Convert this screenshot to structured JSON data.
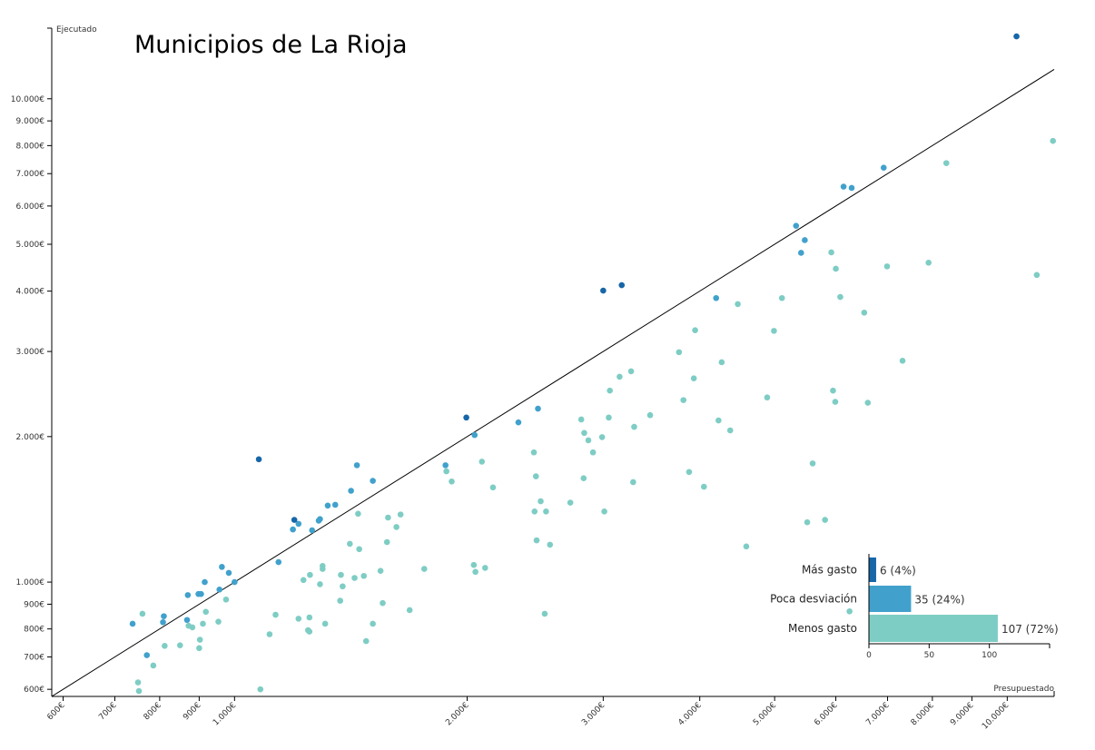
{
  "chart_data": {
    "type": "scatter",
    "title": "Municipios de La Rioja",
    "xlabel": "Presupuestado",
    "ylabel": "Ejecutado",
    "x_scale": "log",
    "y_scale": "log",
    "xlim": [
      580,
      11500
    ],
    "ylim": [
      580,
      14000
    ],
    "x_ticks": [
      600,
      700,
      800,
      900,
      1000,
      2000,
      3000,
      4000,
      5000,
      6000,
      7000,
      8000,
      9000,
      10000
    ],
    "x_tick_labels": [
      "600€",
      "700€",
      "800€",
      "900€",
      "1.000€",
      "2.000€",
      "3.000€",
      "4.000€",
      "5.000€",
      "6.000€",
      "7.000€",
      "8.000€",
      "9.000€",
      "10.000€"
    ],
    "y_ticks": [
      600,
      700,
      800,
      900,
      1000,
      2000,
      3000,
      4000,
      5000,
      6000,
      7000,
      8000,
      9000,
      10000
    ],
    "y_tick_labels": [
      "600€",
      "700€",
      "800€",
      "900€",
      "1.000€",
      "2.000€",
      "3.000€",
      "4.000€",
      "5.000€",
      "6.000€",
      "7.000€",
      "8.000€",
      "9.000€",
      "10.000€"
    ],
    "grid": false,
    "reference_line": "y = x",
    "series": [
      {
        "name": "Más gasto",
        "color": "#1766a8",
        "points": [
          [
            10280,
            13460
          ],
          [
            1075,
            1795
          ],
          [
            1195,
            1345
          ],
          [
            1995,
            2190
          ],
          [
            3000,
            4010
          ],
          [
            3170,
            4115
          ]
        ]
      },
      {
        "name": "Poca desviación",
        "color": "#41a1cc",
        "points": [
          [
            738,
            820
          ],
          [
            770,
            706
          ],
          [
            808,
            826
          ],
          [
            810,
            850
          ],
          [
            868,
            835
          ],
          [
            870,
            940
          ],
          [
            898,
            945
          ],
          [
            905,
            945
          ],
          [
            915,
            1000
          ],
          [
            956,
            965
          ],
          [
            963,
            1075
          ],
          [
            983,
            1045
          ],
          [
            1140,
            1100
          ],
          [
            1190,
            1285
          ],
          [
            1210,
            1320
          ],
          [
            1260,
            1280
          ],
          [
            1285,
            1340
          ],
          [
            1290,
            1350
          ],
          [
            1320,
            1440
          ],
          [
            1350,
            1445
          ],
          [
            1415,
            1545
          ],
          [
            1440,
            1745
          ],
          [
            1510,
            1620
          ],
          [
            1875,
            1745
          ],
          [
            2045,
            2015
          ],
          [
            2330,
            2140
          ],
          [
            2470,
            2285
          ],
          [
            4200,
            3870
          ],
          [
            5330,
            5460
          ],
          [
            5410,
            4800
          ],
          [
            5470,
            5100
          ],
          [
            6140,
            6580
          ],
          [
            6290,
            6540
          ],
          [
            6920,
            7200
          ],
          [
            1000,
            1000
          ]
        ]
      },
      {
        "name": "Menos gasto",
        "color": "#7ecdc4",
        "points": [
          [
            750,
            620
          ],
          [
            752,
            595
          ],
          [
            785,
            672
          ],
          [
            812,
            738
          ],
          [
            850,
            740
          ],
          [
            872,
            812
          ],
          [
            882,
            806
          ],
          [
            890,
            574
          ],
          [
            900,
            730
          ],
          [
            902,
            760
          ],
          [
            910,
            820
          ],
          [
            918,
            868
          ],
          [
            953,
            828
          ],
          [
            975,
            920
          ],
          [
            1080,
            600
          ],
          [
            1110,
            780
          ],
          [
            1130,
            856
          ],
          [
            1210,
            840
          ],
          [
            1228,
            1010
          ],
          [
            1245,
            795
          ],
          [
            1250,
            790
          ],
          [
            1250,
            845
          ],
          [
            1252,
            1035
          ],
          [
            1290,
            990
          ],
          [
            1300,
            1065
          ],
          [
            1300,
            1080
          ],
          [
            1310,
            820
          ],
          [
            1370,
            915
          ],
          [
            1373,
            1035
          ],
          [
            1380,
            980
          ],
          [
            1410,
            1200
          ],
          [
            1430,
            1020
          ],
          [
            1450,
            1170
          ],
          [
            1445,
            1385
          ],
          [
            1470,
            1030
          ],
          [
            1480,
            755
          ],
          [
            1510,
            820
          ],
          [
            1545,
            1055
          ],
          [
            1555,
            905
          ],
          [
            1575,
            1210
          ],
          [
            1580,
            1360
          ],
          [
            1640,
            1380
          ],
          [
            1685,
            875
          ],
          [
            1760,
            1065
          ],
          [
            1880,
            1695
          ],
          [
            1910,
            1615
          ],
          [
            2040,
            1085
          ],
          [
            2050,
            1050
          ],
          [
            2090,
            1775
          ],
          [
            2110,
            1070
          ],
          [
            2160,
            1570
          ],
          [
            2440,
            1855
          ],
          [
            2445,
            1400
          ],
          [
            2455,
            1655
          ],
          [
            2460,
            1220
          ],
          [
            2490,
            1470
          ],
          [
            2520,
            860
          ],
          [
            2530,
            1400
          ],
          [
            2560,
            1195
          ],
          [
            2720,
            1460
          ],
          [
            2810,
            2170
          ],
          [
            2830,
            1640
          ],
          [
            2835,
            2035
          ],
          [
            2870,
            1965
          ],
          [
            2910,
            1855
          ],
          [
            2990,
            1995
          ],
          [
            3010,
            1400
          ],
          [
            3050,
            2190
          ],
          [
            3060,
            2490
          ],
          [
            3150,
            2660
          ],
          [
            3260,
            2730
          ],
          [
            3280,
            1610
          ],
          [
            3290,
            2095
          ],
          [
            3450,
            2215
          ],
          [
            3760,
            2990
          ],
          [
            3810,
            2380
          ],
          [
            3875,
            1690
          ],
          [
            3930,
            2640
          ],
          [
            3945,
            3320
          ],
          [
            4050,
            1575
          ],
          [
            4230,
            2160
          ],
          [
            4270,
            2850
          ],
          [
            4380,
            2060
          ],
          [
            4480,
            3760
          ],
          [
            4595,
            1185
          ],
          [
            4890,
            2410
          ],
          [
            4990,
            3310
          ],
          [
            5110,
            3870
          ],
          [
            5510,
            1330
          ],
          [
            5600,
            1760
          ],
          [
            5810,
            1345
          ],
          [
            5920,
            4810
          ],
          [
            5950,
            2490
          ],
          [
            5990,
            2360
          ],
          [
            6000,
            4450
          ],
          [
            6080,
            3890
          ],
          [
            6250,
            870
          ],
          [
            6530,
            3610
          ],
          [
            6600,
            2350
          ],
          [
            6990,
            4500
          ],
          [
            7320,
            2870
          ],
          [
            7910,
            4580
          ],
          [
            8340,
            7360
          ],
          [
            10920,
            4320
          ],
          [
            11460,
            8180
          ],
          [
            760,
            860
          ],
          [
            1620,
            1300
          ]
        ]
      }
    ],
    "legend": {
      "position": "bottom-right",
      "entries": [
        {
          "name": "Más gasto",
          "count": 6,
          "label": "6 (4%)",
          "color": "#1766a8"
        },
        {
          "name": "Poca desviación",
          "count": 35,
          "label": "35 (24%)",
          "color": "#41a1cc"
        },
        {
          "name": "Menos gasto",
          "count": 107,
          "label": "107 (72%)",
          "color": "#7ecdc4"
        }
      ],
      "axis_ticks": [
        0,
        50,
        100
      ],
      "axis_max": 150
    }
  }
}
